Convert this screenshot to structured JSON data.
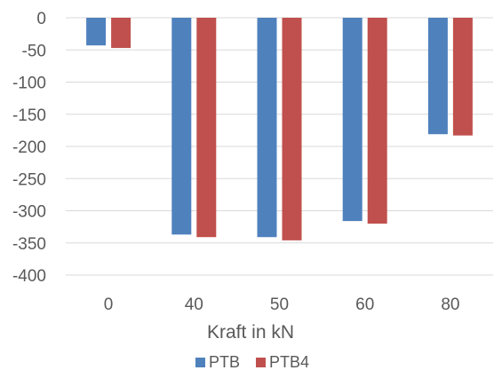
{
  "chart_data": {
    "type": "bar",
    "categories": [
      "0",
      "40",
      "50",
      "60",
      "80"
    ],
    "series": [
      {
        "name": "PTB",
        "values": [
          -43,
          -337,
          -341,
          -316,
          -181
        ]
      },
      {
        "name": "PTB4",
        "values": [
          -47,
          -341,
          -346,
          -320,
          -183
        ]
      }
    ],
    "xlabel": "Kraft in kN",
    "ylabel": "",
    "ylim": [
      -400,
      0
    ],
    "yticks": [
      0,
      -50,
      -100,
      -150,
      -200,
      -250,
      -300,
      -350,
      -400
    ],
    "ytick_labels": [
      "0",
      "-50",
      "-100",
      "-150",
      "-200",
      "-250",
      "-300",
      "-350",
      "-400"
    ],
    "grid": true,
    "legend_position": "bottom",
    "colors": {
      "PTB": "#4f81bd",
      "PTB4": "#c0504d",
      "grid": "#d9d9d9",
      "text": "#595959"
    }
  }
}
